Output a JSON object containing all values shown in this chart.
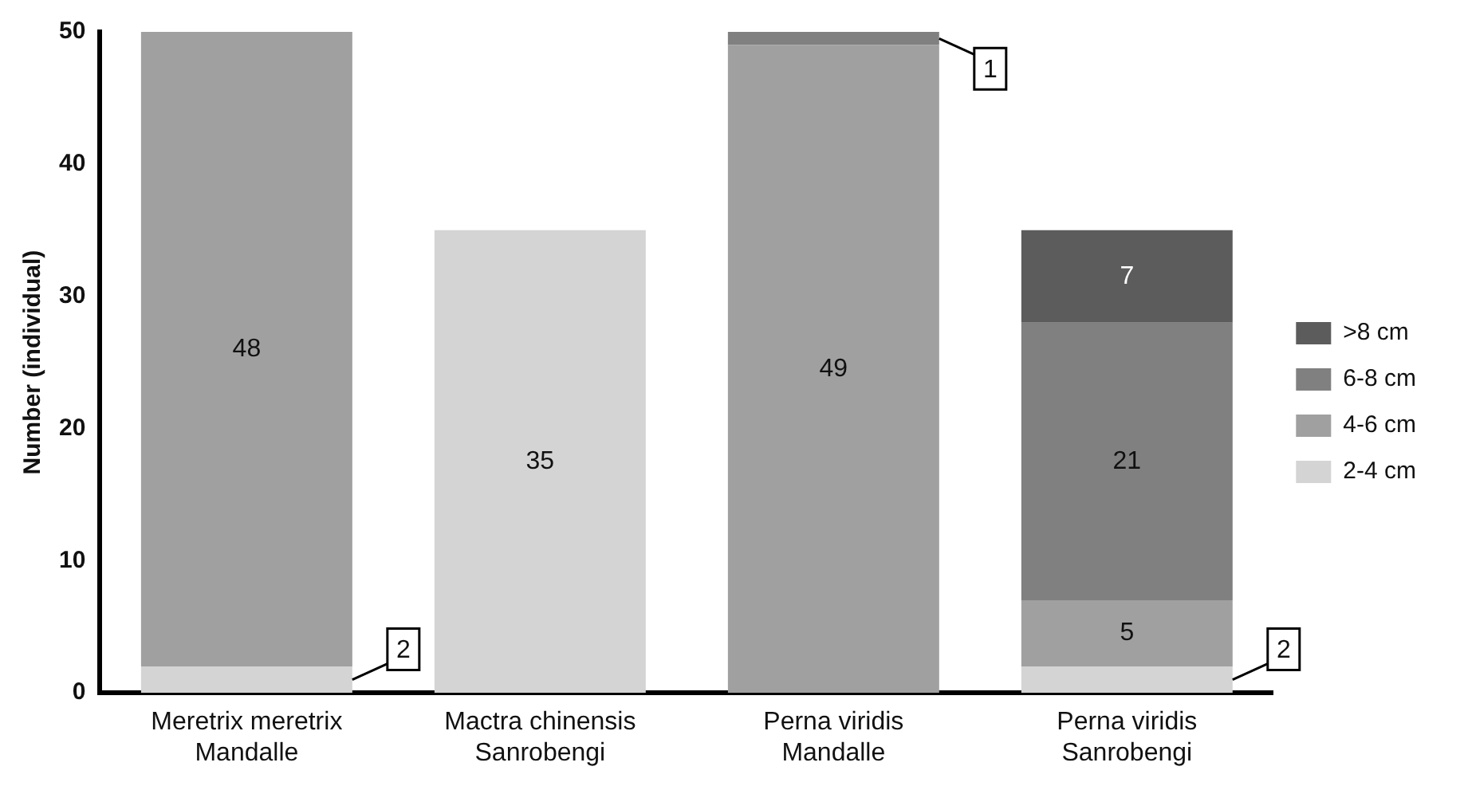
{
  "chart_data": {
    "type": "bar",
    "stacked": true,
    "ylabel": "Number (individual)",
    "categories": [
      "Meretrix meretrix\nMandalle",
      "Mactra chinensis\nSanrobengi",
      "Perna viridis\nMandalle",
      "Perna viridis\nSanrobengi"
    ],
    "series": [
      {
        "name": "2-4 cm",
        "color": "#d4d4d4",
        "values": [
          2,
          35,
          null,
          2
        ],
        "value_labels": [
          "2",
          "35",
          null,
          "2"
        ]
      },
      {
        "name": "4-6 cm",
        "color": "#a0a0a0",
        "values": [
          48,
          null,
          49,
          5
        ],
        "value_labels": [
          "48",
          null,
          "49",
          "5"
        ]
      },
      {
        "name": "6-8 cm",
        "color": "#808080",
        "values": [
          null,
          null,
          1,
          21
        ],
        "value_labels": [
          null,
          null,
          "1",
          "21"
        ]
      },
      {
        "name": ">8 cm",
        "color": "#5c5c5c",
        "values": [
          null,
          null,
          null,
          7
        ],
        "value_labels": [
          null,
          null,
          null,
          "7"
        ]
      }
    ],
    "ylim": [
      0,
      50
    ],
    "yticks": [
      0,
      10,
      20,
      30,
      40,
      50
    ],
    "grid": false,
    "legend": "right"
  }
}
